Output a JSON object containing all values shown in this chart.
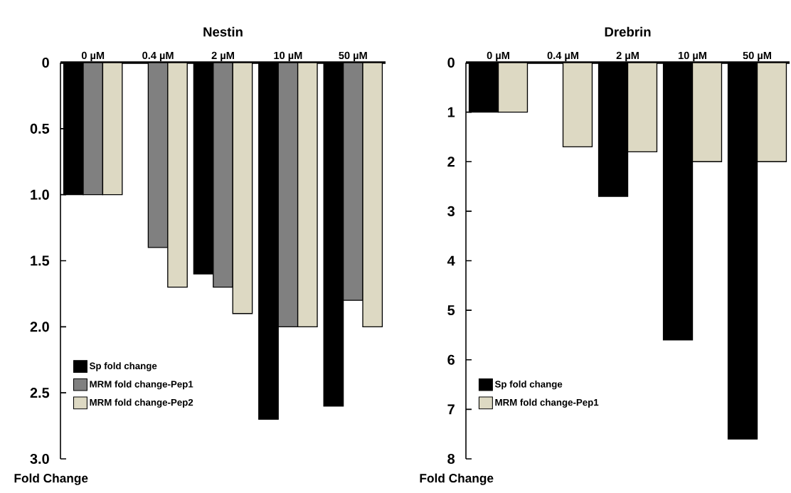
{
  "chart_data": [
    {
      "type": "bar",
      "title": "Nestin",
      "ylabel": "Fold Change",
      "categories": [
        "0 µM",
        "0.4 µM",
        "2 µM",
        "10 µM",
        "50 µM"
      ],
      "series": [
        {
          "name": "Sp fold change",
          "color": "#000000",
          "values": [
            1.0,
            null,
            1.6,
            2.7,
            2.6
          ]
        },
        {
          "name": "MRM fold change-Pep1",
          "color": "#808080",
          "values": [
            1.0,
            1.4,
            1.7,
            2.0,
            1.8
          ]
        },
        {
          "name": "MRM fold change-Pep2",
          "color": "#ddd9c3",
          "values": [
            1.0,
            1.7,
            1.9,
            2.0,
            2.0
          ]
        }
      ],
      "ylim": [
        3,
        0
      ],
      "yticks": [
        0,
        0.5,
        {
          "value": 1,
          "label": "1.0"
        },
        1.5,
        {
          "value": 2,
          "label": "2.0"
        },
        2.5,
        {
          "value": 3,
          "label": "3.0"
        }
      ],
      "legend": "bottom left"
    },
    {
      "type": "bar",
      "title": "Drebrin",
      "ylabel": "Fold Change",
      "categories": [
        "0 µM",
        "0.4 µM",
        "2 µM",
        "10 µM",
        "50 µM"
      ],
      "series": [
        {
          "name": "Sp fold change",
          "color": "#000000",
          "values": [
            1.0,
            null,
            2.7,
            5.6,
            7.6
          ]
        },
        {
          "name": "MRM fold change-Pep1",
          "color": "#ddd9c3",
          "values": [
            1.0,
            1.7,
            1.8,
            2.0,
            2.0
          ]
        }
      ],
      "ylim": [
        8,
        0
      ],
      "yticks": [
        0,
        1,
        2,
        3,
        4,
        5,
        6,
        7,
        8
      ],
      "legend": "bottom left"
    }
  ]
}
